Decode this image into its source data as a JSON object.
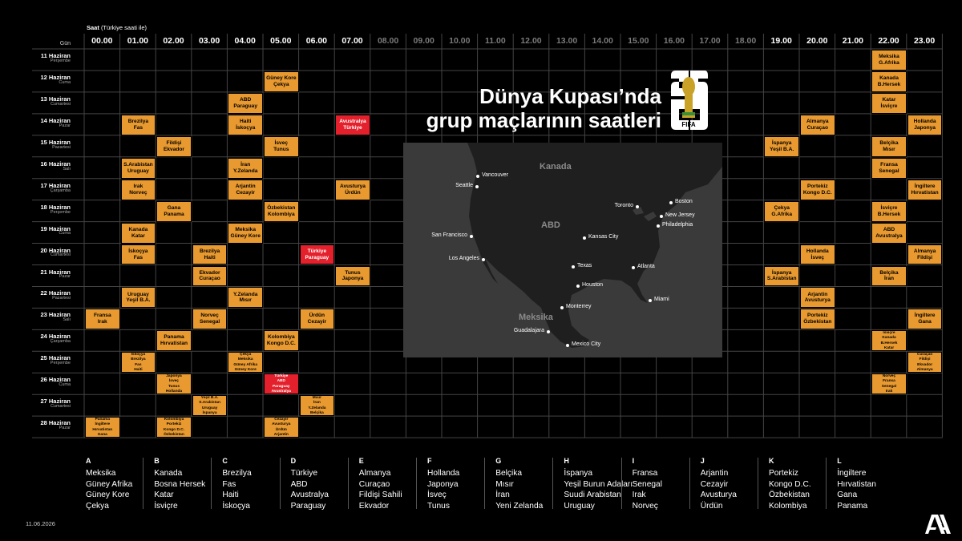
{
  "header": {
    "saat_label": "Saat",
    "saat_note": "(Türkiye saati ile)",
    "gun_label": "Gün"
  },
  "hours": [
    "00.00",
    "01.00",
    "02.00",
    "03.00",
    "04.00",
    "05.00",
    "06.00",
    "07.00",
    "08.00",
    "09.00",
    "10.00",
    "11.00",
    "12.00",
    "13.00",
    "14.00",
    "15.00",
    "16.00",
    "17.00",
    "18.00",
    "19.00",
    "20.00",
    "21.00",
    "22.00",
    "23.00"
  ],
  "active_hours": [
    0,
    1,
    2,
    3,
    4,
    5,
    6,
    7,
    19,
    20,
    21,
    22,
    23
  ],
  "days": [
    {
      "date": "11 Haziran",
      "weekday": "Perşembe"
    },
    {
      "date": "12 Haziran",
      "weekday": "Cuma"
    },
    {
      "date": "13 Haziran",
      "weekday": "Cumartesi"
    },
    {
      "date": "14 Haziran",
      "weekday": "Pazar"
    },
    {
      "date": "15 Haziran",
      "weekday": "Pazartesi"
    },
    {
      "date": "16 Haziran",
      "weekday": "Salı"
    },
    {
      "date": "17 Haziran",
      "weekday": "Çarşamba"
    },
    {
      "date": "18 Haziran",
      "weekday": "Perşembe"
    },
    {
      "date": "19 Haziran",
      "weekday": "Cuma"
    },
    {
      "date": "20 Haziran",
      "weekday": "Cumartesi"
    },
    {
      "date": "21 Haziran",
      "weekday": "Pazar"
    },
    {
      "date": "22 Haziran",
      "weekday": "Pazartesi"
    },
    {
      "date": "23 Haziran",
      "weekday": "Salı"
    },
    {
      "date": "24 Haziran",
      "weekday": "Çarşamba"
    },
    {
      "date": "25 Haziran",
      "weekday": "Perşembe"
    },
    {
      "date": "26 Haziran",
      "weekday": "Cuma"
    },
    {
      "date": "27 Haziran",
      "weekday": "Cumartesi"
    },
    {
      "date": "28 Haziran",
      "weekday": "Pazar"
    }
  ],
  "matches": [
    {
      "day": 0,
      "hour": 22,
      "teams": [
        "Meksika",
        "G.Afrika"
      ]
    },
    {
      "day": 1,
      "hour": 5,
      "teams": [
        "Güney Kore",
        "Çekya"
      ]
    },
    {
      "day": 1,
      "hour": 22,
      "teams": [
        "Kanada",
        "B.Hersek"
      ]
    },
    {
      "day": 2,
      "hour": 4,
      "teams": [
        "ABD",
        "Paraguay"
      ]
    },
    {
      "day": 2,
      "hour": 22,
      "teams": [
        "Katar",
        "İsviçre"
      ]
    },
    {
      "day": 3,
      "hour": 1,
      "teams": [
        "Brezilya",
        "Fas"
      ]
    },
    {
      "day": 3,
      "hour": 4,
      "teams": [
        "Haiti",
        "İskoçya"
      ]
    },
    {
      "day": 3,
      "hour": 7,
      "teams": [
        "Avustralya",
        "Türkiye"
      ],
      "highlight": true
    },
    {
      "day": 3,
      "hour": 20,
      "teams": [
        "Almanya",
        "Curaçao"
      ]
    },
    {
      "day": 3,
      "hour": 23,
      "teams": [
        "Hollanda",
        "Japonya"
      ]
    },
    {
      "day": 4,
      "hour": 2,
      "teams": [
        "Fildişi",
        "Ekvador"
      ]
    },
    {
      "day": 4,
      "hour": 5,
      "teams": [
        "İsveç",
        "Tunus"
      ]
    },
    {
      "day": 4,
      "hour": 19,
      "teams": [
        "İspanya",
        "Yeşil B.A."
      ]
    },
    {
      "day": 4,
      "hour": 22,
      "teams": [
        "Belçika",
        "Mısır"
      ]
    },
    {
      "day": 5,
      "hour": 1,
      "teams": [
        "S.Arabistan",
        "Uruguay"
      ]
    },
    {
      "day": 5,
      "hour": 4,
      "teams": [
        "İran",
        "Y.Zelanda"
      ]
    },
    {
      "day": 5,
      "hour": 22,
      "teams": [
        "Fransa",
        "Senegal"
      ]
    },
    {
      "day": 6,
      "hour": 1,
      "teams": [
        "Irak",
        "Norveç"
      ]
    },
    {
      "day": 6,
      "hour": 4,
      "teams": [
        "Arjantin",
        "Cezayir"
      ]
    },
    {
      "day": 6,
      "hour": 7,
      "teams": [
        "Avusturya",
        "Ürdün"
      ]
    },
    {
      "day": 6,
      "hour": 20,
      "teams": [
        "Portekiz",
        "Kongo D.C."
      ]
    },
    {
      "day": 6,
      "hour": 23,
      "teams": [
        "İngiltere",
        "Hırvatistan"
      ]
    },
    {
      "day": 7,
      "hour": 2,
      "teams": [
        "Gana",
        "Panama"
      ]
    },
    {
      "day": 7,
      "hour": 5,
      "teams": [
        "Özbekistan",
        "Kolombiya"
      ]
    },
    {
      "day": 7,
      "hour": 19,
      "teams": [
        "Çekya",
        "G.Afrika"
      ]
    },
    {
      "day": 7,
      "hour": 22,
      "teams": [
        "İsviçre",
        "B.Hersek"
      ]
    },
    {
      "day": 8,
      "hour": 1,
      "teams": [
        "Kanada",
        "Katar"
      ]
    },
    {
      "day": 8,
      "hour": 4,
      "teams": [
        "Meksika",
        "Güney Kore"
      ]
    },
    {
      "day": 8,
      "hour": 22,
      "teams": [
        "ABD",
        "Avustralya"
      ]
    },
    {
      "day": 9,
      "hour": 1,
      "teams": [
        "İskoçya",
        "Fas"
      ]
    },
    {
      "day": 9,
      "hour": 3,
      "teams": [
        "Brezilya",
        "Haiti"
      ]
    },
    {
      "day": 9,
      "hour": 6,
      "teams": [
        "Türkiye",
        "Paraguay"
      ],
      "highlight": true
    },
    {
      "day": 9,
      "hour": 20,
      "teams": [
        "Hollanda",
        "İsveç"
      ]
    },
    {
      "day": 9,
      "hour": 23,
      "teams": [
        "Almanya",
        "Fildişi"
      ]
    },
    {
      "day": 10,
      "hour": 3,
      "teams": [
        "Ekvador",
        "Curaçao"
      ]
    },
    {
      "day": 10,
      "hour": 7,
      "teams": [
        "Tunus",
        "Japonya"
      ]
    },
    {
      "day": 10,
      "hour": 19,
      "teams": [
        "İspanya",
        "S.Arabistan"
      ]
    },
    {
      "day": 10,
      "hour": 22,
      "teams": [
        "Belçika",
        "İran"
      ]
    },
    {
      "day": 11,
      "hour": 1,
      "teams": [
        "Uruguay",
        "Yeşil B.A."
      ]
    },
    {
      "day": 11,
      "hour": 4,
      "teams": [
        "Y.Zelanda",
        "Mısır"
      ]
    },
    {
      "day": 11,
      "hour": 20,
      "teams": [
        "Arjantin",
        "Avusturya"
      ]
    },
    {
      "day": 12,
      "hour": 0,
      "teams": [
        "Fransa",
        "Irak"
      ]
    },
    {
      "day": 12,
      "hour": 3,
      "teams": [
        "Norveç",
        "Senegal"
      ]
    },
    {
      "day": 12,
      "hour": 6,
      "teams": [
        "Ürdün",
        "Cezayir"
      ]
    },
    {
      "day": 12,
      "hour": 20,
      "teams": [
        "Portekiz",
        "Özbekistan"
      ]
    },
    {
      "day": 12,
      "hour": 23,
      "teams": [
        "İngiltere",
        "Gana"
      ]
    },
    {
      "day": 13,
      "hour": 2,
      "teams": [
        "Panama",
        "Hırvatistan"
      ]
    },
    {
      "day": 13,
      "hour": 5,
      "teams": [
        "Kolombiya",
        "Kongo D.C."
      ]
    },
    {
      "day": 13,
      "hour": 22,
      "teams": [
        "İsviçre",
        "Kanada"
      ],
      "teams2": [
        "B.Hersek",
        "Katar"
      ]
    },
    {
      "day": 14,
      "hour": 1,
      "teams": [
        "İskoçya",
        "Brezilya"
      ],
      "teams2": [
        "Fas",
        "Haiti"
      ]
    },
    {
      "day": 14,
      "hour": 4,
      "teams": [
        "Çekya",
        "Meksika"
      ],
      "teams2": [
        "Güney Afrika",
        "Güney Kore"
      ]
    },
    {
      "day": 14,
      "hour": 23,
      "teams": [
        "Curaçao",
        "Fildişi"
      ],
      "teams2": [
        "Ekvador",
        "Almanya"
      ]
    },
    {
      "day": 15,
      "hour": 2,
      "teams": [
        "Japonya",
        "İsveç"
      ],
      "teams2": [
        "Tunus",
        "Hollanda"
      ]
    },
    {
      "day": 15,
      "hour": 5,
      "teams": [
        "Türkiye",
        "ABD"
      ],
      "teams2": [
        "Paraguay",
        "Avustralya"
      ],
      "highlight": true
    },
    {
      "day": 15,
      "hour": 22,
      "teams": [
        "Norveç",
        "Fransa"
      ],
      "teams2": [
        "Senegal",
        "Irak"
      ]
    },
    {
      "day": 16,
      "hour": 3,
      "teams": [
        "Yeşil B.A.",
        "S.Arabistan"
      ],
      "teams2": [
        "Uruguay",
        "İspanya"
      ]
    },
    {
      "day": 16,
      "hour": 6,
      "teams": [
        "Mısır",
        "İran"
      ],
      "teams2": [
        "Y.Zelanda",
        "Belçika"
      ]
    },
    {
      "day": 17,
      "hour": 0,
      "teams": [
        "Panama",
        "İngiltere"
      ],
      "teams2": [
        "Hırvatistan",
        "Gana"
      ]
    },
    {
      "day": 17,
      "hour": 2,
      "teams": [
        "Kolombiya",
        "Portekiz"
      ],
      "teams2": [
        "Kongo D.C.",
        "Özbekistan"
      ]
    },
    {
      "day": 17,
      "hour": 5,
      "teams": [
        "Cezayir",
        "Avusturya"
      ],
      "teams2": [
        "Ürdün",
        "Arjantin"
      ]
    }
  ],
  "title": {
    "line1": "Dünya Kupası’nda",
    "line2": "grup maçlarının saatleri"
  },
  "logo_text": "FIFA",
  "map": {
    "countries": [
      "Kanada",
      "ABD",
      "Meksika"
    ],
    "cities": [
      "Vancouver",
      "Seattle",
      "San Francisco",
      "Los Angeles",
      "Kansas City",
      "Toronto",
      "Boston",
      "New Jersey",
      "Philadelphia",
      "Texas",
      "Atlanta",
      "Houston",
      "Monterrey",
      "Miami",
      "Guadalajara",
      "Mexico City"
    ]
  },
  "groups": [
    {
      "letter": "A",
      "teams": [
        "Meksika",
        "Güney Afrika",
        "Güney Kore",
        "Çekya"
      ]
    },
    {
      "letter": "B",
      "teams": [
        "Kanada",
        "Bosna Hersek",
        "Katar",
        "İsviçre"
      ]
    },
    {
      "letter": "C",
      "teams": [
        "Brezilya",
        "Fas",
        "Haiti",
        "İskoçya"
      ]
    },
    {
      "letter": "D",
      "teams": [
        "Türkiye",
        "ABD",
        "Avustralya",
        "Paraguay"
      ]
    },
    {
      "letter": "E",
      "teams": [
        "Almanya",
        "Curaçao",
        "Fildişi Sahili",
        "Ekvador"
      ]
    },
    {
      "letter": "F",
      "teams": [
        "Hollanda",
        "Japonya",
        "İsveç",
        "Tunus"
      ]
    },
    {
      "letter": "G",
      "teams": [
        "Belçika",
        "Mısır",
        "İran",
        "Yeni Zelanda"
      ]
    },
    {
      "letter": "H",
      "teams": [
        "İspanya",
        "Yeşil Burun Adaları",
        "Suudi Arabistan",
        "Uruguay"
      ]
    },
    {
      "letter": "I",
      "teams": [
        "Fransa",
        "Senegal",
        "Irak",
        "Norveç"
      ]
    },
    {
      "letter": "J",
      "teams": [
        "Arjantin",
        "Cezayir",
        "Avusturya",
        "Ürdün"
      ]
    },
    {
      "letter": "K",
      "teams": [
        "Portekiz",
        "Kongo D.C.",
        "Özbekistan",
        "Kolombiya"
      ]
    },
    {
      "letter": "L",
      "teams": [
        "İngiltere",
        "Hırvatistan",
        "Gana",
        "Panama"
      ]
    }
  ],
  "footer": {
    "date": "11.06.2026",
    "agency": "AA"
  },
  "colors": {
    "match": "#e8992f",
    "highlight": "#e3202b",
    "grid": "#444444",
    "map": "#3d3d3d"
  }
}
